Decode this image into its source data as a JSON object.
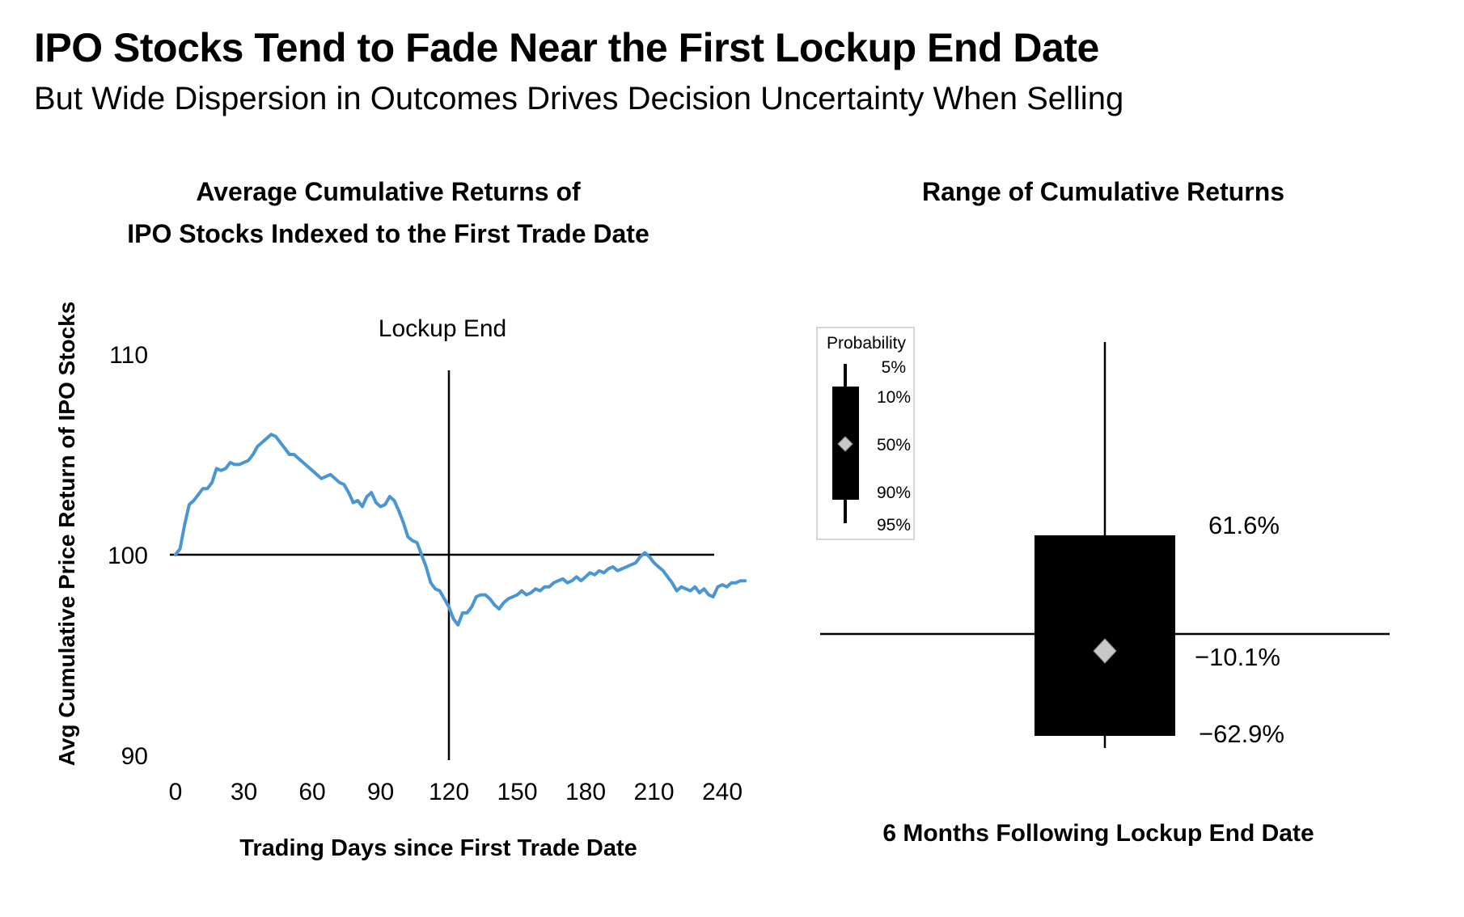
{
  "header": {
    "title": "IPO Stocks Tend to Fade Near the First Lockup End Date",
    "subtitle": "But Wide Dispersion in Outcomes Drives Decision Uncertainty When Selling"
  },
  "colors": {
    "line": "#4a96d2",
    "axis": "#000000",
    "box": "#000000",
    "diamond": "#c8c8c8"
  },
  "chart_data": [
    {
      "type": "line",
      "title_lines": [
        "Average Cumulative Returns of",
        "IPO Stocks Indexed to the First Trade Date"
      ],
      "xlabel": "Trading Days since First Trade Date",
      "ylabel": "Avg Cumulative Price Return of IPO Stocks",
      "xlim": [
        0,
        250
      ],
      "ylim": [
        90,
        110
      ],
      "x_ticks": [
        0,
        30,
        60,
        90,
        120,
        150,
        180,
        210,
        240
      ],
      "y_ticks": [
        90,
        100,
        110
      ],
      "baseline": 100,
      "annotation": {
        "label": "Lockup End",
        "x": 120
      },
      "series": [
        {
          "x": [
            0,
            2,
            4,
            6,
            8,
            10,
            12,
            14,
            16,
            18,
            20,
            22,
            24,
            26,
            28,
            30,
            32,
            34,
            36,
            38,
            40,
            42,
            44,
            46,
            48,
            50,
            52,
            54,
            56,
            58,
            60,
            62,
            64,
            66,
            68,
            70,
            72,
            74,
            76,
            78,
            80,
            82,
            84,
            86,
            88,
            90,
            92,
            94,
            96,
            98,
            100,
            102,
            104,
            106,
            108,
            110,
            112,
            114,
            116,
            118,
            120,
            122,
            124,
            126,
            128,
            130,
            132,
            134,
            136,
            138,
            140,
            142,
            144,
            146,
            148,
            150,
            152,
            154,
            156,
            158,
            160,
            162,
            164,
            166,
            168,
            170,
            172,
            174,
            176,
            178,
            180,
            182,
            184,
            186,
            188,
            190,
            192,
            194,
            196,
            198,
            200,
            202,
            204,
            206,
            208,
            210,
            212,
            214,
            216,
            218,
            220,
            222,
            224,
            226,
            228,
            230,
            232,
            234,
            236,
            238,
            240,
            242,
            244,
            246,
            248,
            250
          ],
          "y": [
            100.0,
            100.3,
            101.5,
            102.5,
            102.7,
            103.0,
            103.3,
            103.3,
            103.6,
            104.3,
            104.2,
            104.3,
            104.6,
            104.5,
            104.5,
            104.6,
            104.7,
            105.0,
            105.4,
            105.6,
            105.8,
            106.0,
            105.9,
            105.6,
            105.3,
            105.0,
            105.0,
            104.8,
            104.6,
            104.4,
            104.2,
            104.0,
            103.8,
            103.9,
            104.0,
            103.8,
            103.6,
            103.5,
            103.1,
            102.6,
            102.7,
            102.4,
            102.9,
            103.1,
            102.6,
            102.4,
            102.5,
            102.9,
            102.7,
            102.2,
            101.6,
            100.9,
            100.7,
            100.6,
            100.0,
            99.4,
            98.6,
            98.3,
            98.2,
            97.8,
            97.4,
            96.8,
            96.5,
            97.1,
            97.1,
            97.4,
            97.9,
            98.0,
            98.0,
            97.8,
            97.5,
            97.3,
            97.6,
            97.8,
            97.9,
            98.0,
            98.2,
            98.0,
            98.1,
            98.3,
            98.2,
            98.4,
            98.4,
            98.6,
            98.7,
            98.8,
            98.6,
            98.7,
            98.9,
            98.7,
            98.9,
            99.1,
            99.0,
            99.2,
            99.1,
            99.3,
            99.4,
            99.2,
            99.3,
            99.4,
            99.5,
            99.6,
            99.9,
            100.1,
            99.9,
            99.6,
            99.4,
            99.2,
            98.9,
            98.6,
            98.2,
            98.4,
            98.3,
            98.2,
            98.4,
            98.1,
            98.3,
            98.0,
            97.9,
            98.4,
            98.5,
            98.4,
            98.6,
            98.6,
            98.7,
            98.7
          ]
        }
      ]
    },
    {
      "type": "box",
      "title": "Range of Cumulative Returns",
      "xlabel": "6 Months Following Lockup End Date",
      "category": "6 Months Following Lockup End Date",
      "values": {
        "p90": 61.6,
        "p50": -10.1,
        "p10": -62.9
      },
      "labels": {
        "p90": "61.6%",
        "p50": "−10.1%",
        "p10": "−62.9%"
      },
      "legend": {
        "title": "Probability",
        "labels": [
          "5%",
          "10%",
          "50%",
          "90%",
          "95%"
        ],
        "placement": "top-left"
      }
    }
  ]
}
